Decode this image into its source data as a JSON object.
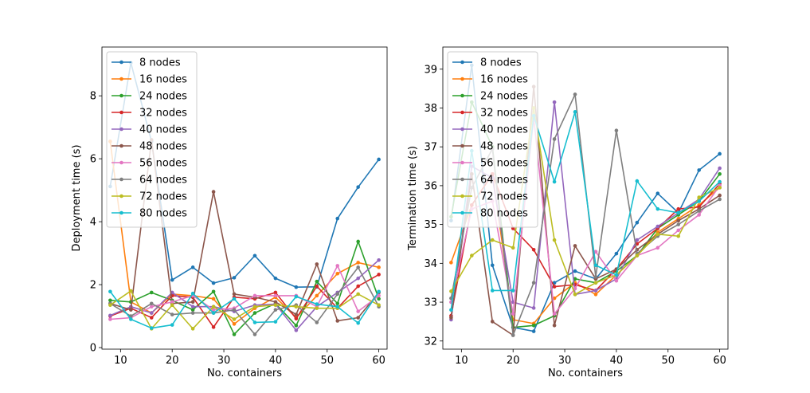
{
  "chart_data": [
    {
      "type": "line",
      "xlabel": "No. containers",
      "ylabel": "Deployment time (s)",
      "xlim": [
        6.4,
        61.6
      ],
      "ylim": [
        -0.05,
        9.55
      ],
      "xticks": [
        10,
        20,
        30,
        40,
        50,
        60
      ],
      "yticks": [
        0,
        2,
        4,
        6,
        8
      ],
      "legend_position": "top-left",
      "x": [
        8,
        12,
        16,
        20,
        24,
        28,
        32,
        36,
        40,
        44,
        48,
        52,
        56,
        60
      ],
      "series": [
        {
          "name": "8 nodes",
          "color": "#1f77b4",
          "values": [
            5.12,
            9.05,
            6.55,
            2.15,
            2.55,
            2.05,
            2.22,
            2.92,
            2.2,
            1.92,
            1.93,
            4.1,
            5.1,
            5.98
          ]
        },
        {
          "name": "16 nodes",
          "color": "#ff7f0e",
          "values": [
            6.55,
            1.45,
            1.1,
            1.7,
            1.65,
            1.55,
            0.75,
            1.25,
            1.6,
            0.95,
            1.65,
            2.35,
            2.7,
            2.55
          ]
        },
        {
          "name": "24 nodes",
          "color": "#2ca02c",
          "values": [
            1.5,
            1.45,
            1.75,
            1.5,
            1.2,
            1.78,
            0.42,
            1.1,
            1.4,
            0.7,
            2.1,
            1.4,
            3.37,
            1.55
          ]
        },
        {
          "name": "32 nodes",
          "color": "#d62728",
          "values": [
            1.0,
            1.25,
            0.95,
            1.65,
            1.6,
            0.65,
            1.6,
            1.55,
            1.75,
            0.92,
            1.95,
            1.25,
            1.95,
            2.32
          ]
        },
        {
          "name": "40 nodes",
          "color": "#9467bd",
          "values": [
            1.02,
            1.3,
            1.1,
            1.75,
            1.3,
            1.3,
            1.15,
            1.35,
            1.38,
            0.55,
            1.3,
            1.75,
            2.2,
            2.78
          ]
        },
        {
          "name": "48 nodes",
          "color": "#8c564b",
          "values": [
            1.4,
            1.2,
            6.6,
            1.4,
            1.45,
            4.95,
            1.7,
            1.6,
            1.45,
            1.05,
            2.65,
            0.85,
            0.95,
            1.75
          ]
        },
        {
          "name": "56 nodes",
          "color": "#e377c2",
          "values": [
            0.9,
            0.95,
            1.3,
            1.45,
            1.65,
            1.2,
            1.25,
            1.65,
            1.65,
            1.65,
            1.3,
            2.6,
            1.15,
            1.65
          ]
        },
        {
          "name": "64 nodes",
          "color": "#7f7f7f",
          "values": [
            1.4,
            1.0,
            1.4,
            1.05,
            1.1,
            1.1,
            1.2,
            0.42,
            1.2,
            1.35,
            0.8,
            1.7,
            2.55,
            1.3
          ]
        },
        {
          "name": "72 nodes",
          "color": "#bcbd22",
          "values": [
            1.35,
            1.8,
            0.6,
            1.35,
            0.6,
            1.3,
            0.9,
            1.3,
            1.35,
            1.3,
            1.25,
            1.25,
            1.7,
            1.35
          ]
        },
        {
          "name": "80 nodes",
          "color": "#17becf",
          "values": [
            1.78,
            0.9,
            0.62,
            0.72,
            1.72,
            1.1,
            1.55,
            0.8,
            0.82,
            1.62,
            1.38,
            1.3,
            0.78,
            1.78
          ]
        }
      ]
    },
    {
      "type": "line",
      "xlabel": "No. containers",
      "ylabel": "Termination time (s)",
      "xlim": [
        6.4,
        61.6
      ],
      "ylim": [
        31.79,
        39.57
      ],
      "xticks": [
        10,
        20,
        30,
        40,
        50,
        60
      ],
      "yticks": [
        32,
        33,
        34,
        35,
        36,
        37,
        38,
        39
      ],
      "legend_position": "top-left",
      "x": [
        8,
        12,
        16,
        20,
        24,
        28,
        32,
        36,
        40,
        44,
        48,
        52,
        56,
        60
      ],
      "series": [
        {
          "name": "8 nodes",
          "color": "#1f77b4",
          "values": [
            35.1,
            39.1,
            33.95,
            32.35,
            32.25,
            33.5,
            33.8,
            33.6,
            34.25,
            35.05,
            35.8,
            35.3,
            36.4,
            36.82
          ]
        },
        {
          "name": "16 nodes",
          "color": "#ff7f0e",
          "values": [
            34.02,
            35.5,
            36.3,
            32.55,
            32.45,
            33.1,
            33.5,
            33.2,
            33.7,
            34.2,
            34.8,
            35.15,
            35.5,
            35.95
          ]
        },
        {
          "name": "24 nodes",
          "color": "#2ca02c",
          "values": [
            35.2,
            38.15,
            37.0,
            32.35,
            32.4,
            32.65,
            33.6,
            33.5,
            33.8,
            34.2,
            34.9,
            35.25,
            35.6,
            36.3
          ]
        },
        {
          "name": "32 nodes",
          "color": "#d62728",
          "values": [
            32.65,
            35.5,
            36.3,
            34.9,
            34.35,
            33.4,
            33.45,
            33.3,
            33.85,
            34.5,
            34.9,
            35.4,
            35.45,
            36.05
          ]
        },
        {
          "name": "40 nodes",
          "color": "#9467bd",
          "values": [
            32.55,
            36.5,
            36.2,
            33.0,
            32.85,
            38.15,
            33.2,
            33.3,
            33.6,
            34.6,
            34.95,
            35.3,
            35.65,
            36.45
          ]
        },
        {
          "name": "48 nodes",
          "color": "#8c564b",
          "values": [
            32.6,
            36.3,
            32.5,
            32.15,
            38.55,
            32.4,
            34.45,
            33.6,
            33.85,
            34.35,
            34.75,
            35.1,
            35.4,
            35.75
          ]
        },
        {
          "name": "56 nodes",
          "color": "#e377c2",
          "values": [
            33.0,
            35.4,
            35.6,
            32.7,
            37.75,
            32.7,
            33.35,
            34.3,
            33.55,
            34.2,
            34.4,
            34.85,
            35.25,
            36.0
          ]
        },
        {
          "name": "64 nodes",
          "color": "#7f7f7f",
          "values": [
            33.1,
            35.95,
            36.95,
            32.15,
            33.5,
            37.2,
            38.35,
            33.65,
            37.42,
            34.25,
            34.7,
            35.0,
            35.35,
            35.65
          ]
        },
        {
          "name": "72 nodes",
          "color": "#bcbd22",
          "values": [
            33.28,
            34.2,
            34.6,
            34.4,
            38.0,
            34.6,
            33.2,
            33.5,
            33.7,
            34.2,
            34.75,
            34.7,
            35.7,
            35.95
          ]
        },
        {
          "name": "80 nodes",
          "color": "#17becf",
          "values": [
            32.8,
            36.9,
            33.3,
            33.3,
            37.8,
            36.1,
            37.9,
            33.95,
            33.7,
            36.12,
            35.4,
            35.3,
            35.6,
            36.1
          ]
        }
      ]
    }
  ]
}
